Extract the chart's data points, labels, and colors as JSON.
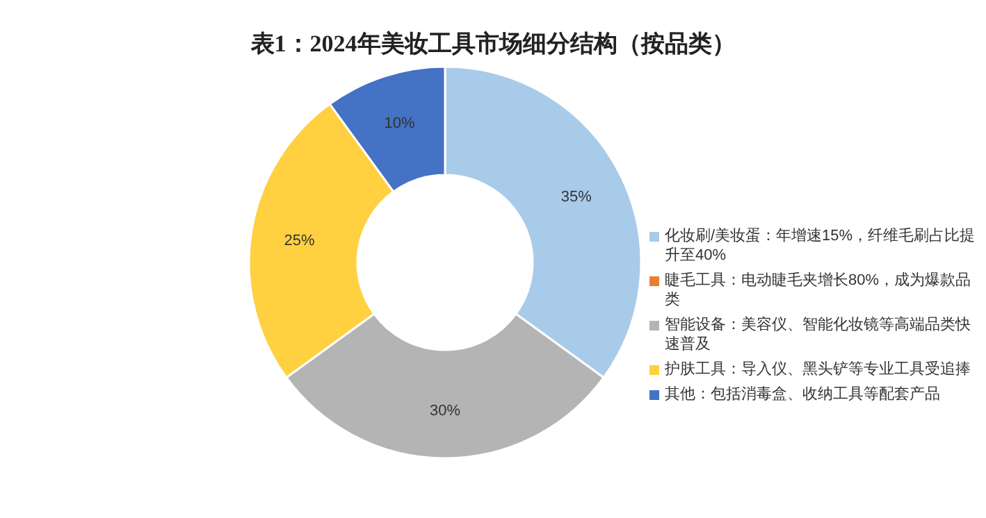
{
  "chart_data": {
    "type": "donut",
    "title": "表1：2024年美妆工具市场细分结构（按品类）",
    "categories": [
      "化妆刷/美妆蛋：年增速15%，纤维毛刷占比提升至40%",
      "睫毛工具：电动睫毛夹增长80%，成为爆款品类",
      "智能设备：美容仪、智能化妆镜等高端品类快速普及",
      "护肤工具：导入仪、黑头铲等专业工具受追捧",
      "其他：包括消毒盒、收纳工具等配套产品"
    ],
    "values": [
      35,
      0,
      30,
      25,
      10
    ],
    "colors": [
      "#a9cbea",
      "#ed7d31",
      "#b4b4b4",
      "#ffd040",
      "#4472c4"
    ],
    "value_labels": [
      "35%",
      null,
      "30%",
      "25%",
      "10%"
    ],
    "legend": "right"
  }
}
